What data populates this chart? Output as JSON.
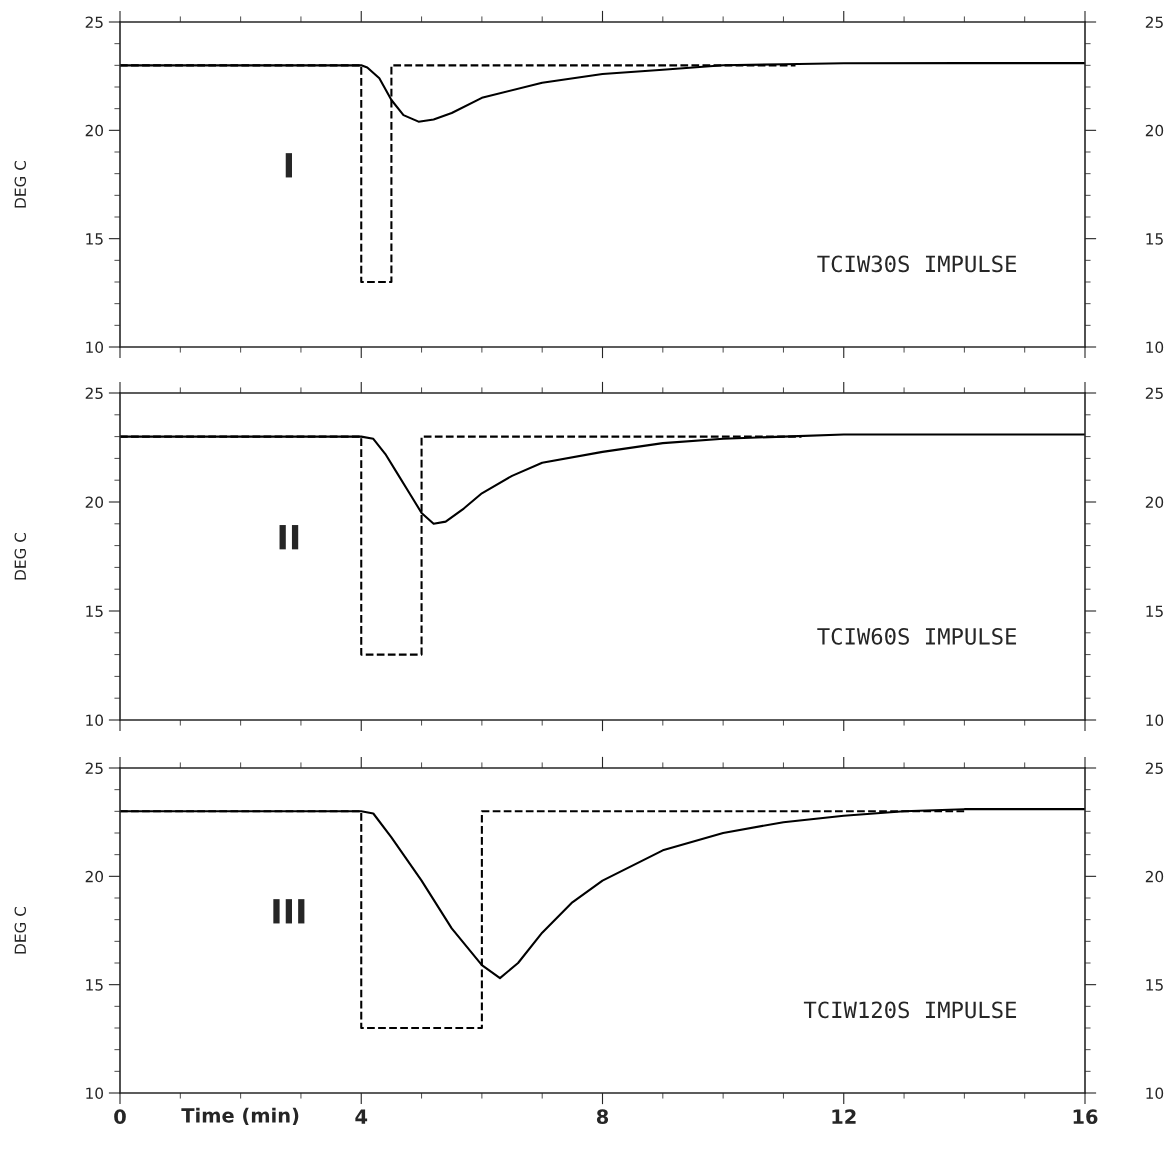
{
  "chart_data": [
    {
      "type": "line",
      "ylabel": "DEG C",
      "xlim": [
        0,
        16
      ],
      "xticks": [
        0,
        4,
        8,
        12,
        16
      ],
      "ylim": [
        10,
        25
      ],
      "yticks": [
        10,
        15,
        20,
        25
      ],
      "y2lim": [
        10,
        25
      ],
      "y2ticks": [
        10,
        15,
        20,
        25
      ],
      "tick_labels": "y",
      "grid": false,
      "annotations": [
        "I",
        "TCIW30S IMPULSE"
      ],
      "series": [
        {
          "color": "#000000",
          "line_style": "solid",
          "x": [
            0,
            4,
            4.1,
            4.3,
            4.5,
            4.7,
            4.95,
            5.2,
            5.5,
            6,
            7,
            8,
            9,
            10,
            11,
            12,
            14,
            16
          ],
          "values": [
            23,
            23,
            22.9,
            22.4,
            21.4,
            20.7,
            20.4,
            20.5,
            20.8,
            21.5,
            22.2,
            22.6,
            22.8,
            23.0,
            23.05,
            23.1,
            23.1,
            23.1
          ]
        },
        {
          "color": "#000000",
          "line_style": "dashed",
          "x": [
            0,
            4,
            4,
            4.5,
            4.5,
            11.2
          ],
          "values": [
            23,
            23,
            13,
            13,
            23,
            23
          ]
        }
      ]
    },
    {
      "type": "line",
      "ylabel": "DEG C",
      "xlim": [
        0,
        16
      ],
      "xticks": [
        0,
        4,
        8,
        12,
        16
      ],
      "ylim": [
        10,
        25
      ],
      "yticks": [
        10,
        15,
        20,
        25
      ],
      "y2lim": [
        10,
        25
      ],
      "y2ticks": [
        10,
        15,
        20,
        25
      ],
      "tick_labels": "y",
      "grid": false,
      "annotations": [
        "II",
        "TCIW60S IMPULSE"
      ],
      "series": [
        {
          "color": "#000000",
          "line_style": "solid",
          "x": [
            0,
            4,
            4.2,
            4.4,
            4.6,
            4.8,
            5.0,
            5.2,
            5.4,
            5.7,
            6,
            6.5,
            7,
            8,
            9,
            10,
            11,
            12,
            14,
            16
          ],
          "values": [
            23,
            23,
            22.9,
            22.2,
            21.3,
            20.4,
            19.5,
            19.0,
            19.1,
            19.7,
            20.4,
            21.2,
            21.8,
            22.3,
            22.7,
            22.9,
            23.0,
            23.1,
            23.1,
            23.1
          ]
        },
        {
          "color": "#000000",
          "line_style": "dashed",
          "x": [
            0,
            4,
            4,
            5,
            5,
            11.3
          ],
          "values": [
            23,
            23,
            13,
            13,
            23,
            23
          ]
        }
      ]
    },
    {
      "type": "line",
      "ylabel": "DEG C",
      "xlabel": "Time (min)",
      "xlim": [
        0,
        16
      ],
      "xticks": [
        0,
        4,
        8,
        12,
        16
      ],
      "ylim": [
        10,
        25
      ],
      "yticks": [
        10,
        15,
        20,
        25
      ],
      "y2lim": [
        10,
        25
      ],
      "y2ticks": [
        10,
        15,
        20,
        25
      ],
      "grid": false,
      "annotations": [
        "III",
        "TCIW120S IMPULSE"
      ],
      "series": [
        {
          "color": "#000000",
          "line_style": "solid",
          "x": [
            0,
            4,
            4.2,
            4.5,
            5,
            5.5,
            6,
            6.3,
            6.6,
            7,
            7.5,
            8,
            9,
            10,
            11,
            12,
            13,
            14,
            16
          ],
          "values": [
            23,
            23,
            22.9,
            21.8,
            19.8,
            17.6,
            15.9,
            15.3,
            16.0,
            17.4,
            18.8,
            19.8,
            21.2,
            22.0,
            22.5,
            22.8,
            23.0,
            23.1,
            23.1
          ]
        },
        {
          "color": "#000000",
          "line_style": "dashed",
          "x": [
            0,
            4,
            4,
            6,
            6,
            14
          ],
          "values": [
            23,
            23,
            13,
            13,
            23,
            23
          ]
        }
      ]
    }
  ]
}
